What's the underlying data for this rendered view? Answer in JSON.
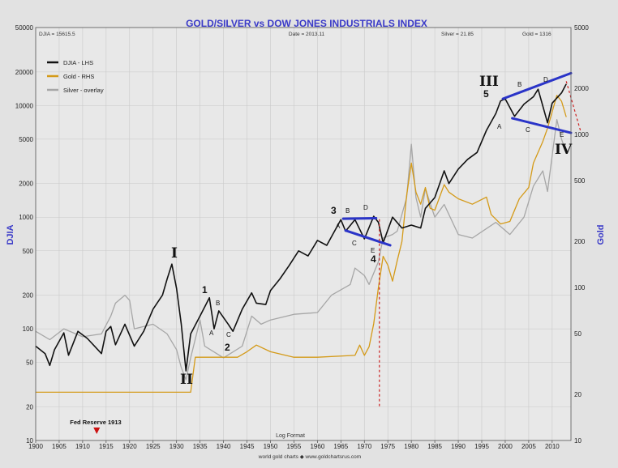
{
  "chart_data": {
    "type": "line",
    "title": "GOLD/SILVER vs DOW JONES INDUSTRIALS INDEX",
    "header": {
      "left": "DJIA = 15615.5",
      "center": "Date = 2013.11",
      "silver": "Silver = 21.85",
      "gold": "Gold = 1316"
    },
    "ylabel_left": "DJIA",
    "ylabel_right": "Gold",
    "xlabel": "Log Format",
    "footer": "world gold charts ◆ www.goldchartsrus.com",
    "scale": "log",
    "xlim": [
      1900,
      2014
    ],
    "ylim_left": [
      10,
      50000
    ],
    "ylim_right": [
      10,
      5000
    ],
    "x_ticks": [
      1900,
      1905,
      1910,
      1915,
      1920,
      1925,
      1930,
      1935,
      1940,
      1945,
      1950,
      1955,
      1960,
      1965,
      1970,
      1975,
      1980,
      1985,
      1990,
      1995,
      2000,
      2005,
      2010
    ],
    "y_ticks_left": [
      {
        "value": 10,
        "label": "10"
      },
      {
        "value": 20,
        "label": "20"
      },
      {
        "value": 50,
        "label": "50"
      },
      {
        "value": 100,
        "label": "100"
      },
      {
        "value": 200,
        "label": "200"
      },
      {
        "value": 500,
        "label": "500"
      },
      {
        "value": 1000,
        "label": "1000"
      },
      {
        "value": 2000,
        "label": "2000"
      },
      {
        "value": 5000,
        "label": "5000"
      },
      {
        "value": 10000,
        "label": "10000"
      },
      {
        "value": 20000,
        "label": "20000"
      },
      {
        "value": 50000,
        "label": "50000"
      }
    ],
    "y_ticks_right": [
      {
        "value": 10,
        "label": "10"
      },
      {
        "value": 20,
        "label": "20"
      },
      {
        "value": 50,
        "label": "50"
      },
      {
        "value": 100,
        "label": "100"
      },
      {
        "value": 200,
        "label": "200"
      },
      {
        "value": 500,
        "label": "500"
      },
      {
        "value": 1000,
        "label": "1000"
      },
      {
        "value": 2000,
        "label": "2000"
      },
      {
        "value": 5000,
        "label": "5000"
      }
    ],
    "grid": true,
    "legend_position": "top-left",
    "series": [
      {
        "name": "DJIA - LHS",
        "axis": "left",
        "color": "#111111",
        "points": [
          [
            1900,
            70
          ],
          [
            1902,
            60
          ],
          [
            1903,
            47
          ],
          [
            1904,
            65
          ],
          [
            1906,
            92
          ],
          [
            1907,
            58
          ],
          [
            1909,
            95
          ],
          [
            1911,
            82
          ],
          [
            1914,
            60
          ],
          [
            1915,
            95
          ],
          [
            1916,
            105
          ],
          [
            1917,
            72
          ],
          [
            1919,
            110
          ],
          [
            1921,
            70
          ],
          [
            1923,
            95
          ],
          [
            1925,
            150
          ],
          [
            1927,
            200
          ],
          [
            1928,
            280
          ],
          [
            1929,
            380
          ],
          [
            1930,
            230
          ],
          [
            1931,
            110
          ],
          [
            1932,
            42
          ],
          [
            1933,
            90
          ],
          [
            1935,
            130
          ],
          [
            1937,
            190
          ],
          [
            1938,
            100
          ],
          [
            1939,
            145
          ],
          [
            1941,
            110
          ],
          [
            1942,
            95
          ],
          [
            1944,
            150
          ],
          [
            1946,
            210
          ],
          [
            1947,
            170
          ],
          [
            1949,
            165
          ],
          [
            1950,
            220
          ],
          [
            1952,
            280
          ],
          [
            1954,
            370
          ],
          [
            1956,
            500
          ],
          [
            1958,
            450
          ],
          [
            1960,
            620
          ],
          [
            1962,
            560
          ],
          [
            1965,
            950
          ],
          [
            1966,
            750
          ],
          [
            1968,
            950
          ],
          [
            1970,
            640
          ],
          [
            1972,
            1020
          ],
          [
            1973,
            900
          ],
          [
            1974,
            590
          ],
          [
            1976,
            1000
          ],
          [
            1978,
            800
          ],
          [
            1980,
            850
          ],
          [
            1982,
            800
          ],
          [
            1983,
            1200
          ],
          [
            1985,
            1500
          ],
          [
            1987,
            2600
          ],
          [
            1988,
            2000
          ],
          [
            1990,
            2700
          ],
          [
            1992,
            3300
          ],
          [
            1994,
            3800
          ],
          [
            1996,
            6000
          ],
          [
            1998,
            8500
          ],
          [
            1999,
            11000
          ],
          [
            2000,
            11500
          ],
          [
            2002,
            8000
          ],
          [
            2004,
            10300
          ],
          [
            2006,
            12000
          ],
          [
            2007,
            14000
          ],
          [
            2009,
            7000
          ],
          [
            2010,
            10500
          ],
          [
            2012,
            13000
          ],
          [
            2013,
            15600
          ]
        ]
      },
      {
        "name": "Gold - RHS",
        "axis": "right",
        "color": "#d49a18",
        "points": [
          [
            1900,
            20.67
          ],
          [
            1933,
            20.67
          ],
          [
            1934,
            35
          ],
          [
            1940,
            35
          ],
          [
            1943,
            35
          ],
          [
            1945,
            38
          ],
          [
            1947,
            42
          ],
          [
            1950,
            38
          ],
          [
            1955,
            35
          ],
          [
            1960,
            35
          ],
          [
            1968,
            36
          ],
          [
            1969,
            42
          ],
          [
            1970,
            36
          ],
          [
            1971,
            41
          ],
          [
            1972,
            58
          ],
          [
            1973,
            100
          ],
          [
            1974,
            160
          ],
          [
            1975,
            140
          ],
          [
            1976,
            110
          ],
          [
            1977,
            150
          ],
          [
            1978,
            200
          ],
          [
            1979,
            400
          ],
          [
            1980,
            650
          ],
          [
            1981,
            420
          ],
          [
            1982,
            350
          ],
          [
            1983,
            450
          ],
          [
            1984,
            330
          ],
          [
            1985,
            320
          ],
          [
            1987,
            470
          ],
          [
            1988,
            420
          ],
          [
            1990,
            380
          ],
          [
            1993,
            350
          ],
          [
            1996,
            390
          ],
          [
            1997,
            300
          ],
          [
            1999,
            260
          ],
          [
            2001,
            270
          ],
          [
            2003,
            380
          ],
          [
            2005,
            450
          ],
          [
            2006,
            650
          ],
          [
            2008,
            900
          ],
          [
            2009,
            1100
          ],
          [
            2011,
            1800
          ],
          [
            2012,
            1650
          ],
          [
            2013,
            1300
          ]
        ]
      },
      {
        "name": "Silver - overlay",
        "axis": "left",
        "color": "#a6a6a6",
        "points": [
          [
            1900,
            95
          ],
          [
            1903,
            80
          ],
          [
            1906,
            100
          ],
          [
            1910,
            85
          ],
          [
            1914,
            90
          ],
          [
            1916,
            130
          ],
          [
            1917,
            170
          ],
          [
            1919,
            200
          ],
          [
            1920,
            180
          ],
          [
            1921,
            100
          ],
          [
            1925,
            110
          ],
          [
            1928,
            90
          ],
          [
            1930,
            65
          ],
          [
            1931,
            45
          ],
          [
            1932,
            35
          ],
          [
            1933,
            55
          ],
          [
            1935,
            120
          ],
          [
            1936,
            70
          ],
          [
            1940,
            55
          ],
          [
            1944,
            70
          ],
          [
            1946,
            130
          ],
          [
            1948,
            110
          ],
          [
            1950,
            120
          ],
          [
            1955,
            135
          ],
          [
            1960,
            140
          ],
          [
            1963,
            200
          ],
          [
            1967,
            250
          ],
          [
            1968,
            350
          ],
          [
            1970,
            300
          ],
          [
            1971,
            250
          ],
          [
            1973,
            400
          ],
          [
            1974,
            650
          ],
          [
            1976,
            700
          ],
          [
            1977,
            750
          ],
          [
            1979,
            1500
          ],
          [
            1980,
            4500
          ],
          [
            1981,
            1500
          ],
          [
            1982,
            1000
          ],
          [
            1983,
            1800
          ],
          [
            1985,
            1000
          ],
          [
            1987,
            1300
          ],
          [
            1990,
            700
          ],
          [
            1993,
            650
          ],
          [
            1998,
            900
          ],
          [
            2001,
            700
          ],
          [
            2004,
            1000
          ],
          [
            2006,
            1900
          ],
          [
            2008,
            2600
          ],
          [
            2009,
            1700
          ],
          [
            2011,
            7500
          ],
          [
            2012,
            5000
          ],
          [
            2013,
            3800
          ]
        ]
      }
    ],
    "trendlines": [
      {
        "points": [
          [
            1965.5,
            970
          ],
          [
            1972.5,
            980
          ]
        ]
      },
      {
        "points": [
          [
            1966,
            760
          ],
          [
            1975.5,
            560
          ]
        ]
      },
      {
        "points": [
          [
            1999.5,
            11500
          ],
          [
            2014,
            19500
          ]
        ]
      },
      {
        "points": [
          [
            2001.5,
            7700
          ],
          [
            2014,
            5700
          ]
        ]
      }
    ],
    "guide_lines": [
      {
        "points": [
          [
            1973.2,
            960
          ],
          [
            1973.2,
            20
          ]
        ]
      },
      {
        "points": [
          [
            2013,
            16500
          ],
          [
            2016,
            6000
          ]
        ]
      }
    ],
    "wave_labels": {
      "I": "I",
      "II": "II",
      "III": "III",
      "IV": "IV",
      "w1": "1",
      "w2": "2",
      "w3": "3",
      "w4": "4",
      "w5": "5",
      "A1": "A",
      "B1": "B",
      "C1": "C",
      "A2": "A",
      "B2": "B",
      "C2": "C",
      "D2": "D",
      "E2": "E",
      "A3": "A",
      "B3": "B",
      "C3": "C",
      "D3": "D",
      "E3": "E"
    },
    "event": {
      "label": "Fed Reserve 1913",
      "year": 1913
    }
  }
}
